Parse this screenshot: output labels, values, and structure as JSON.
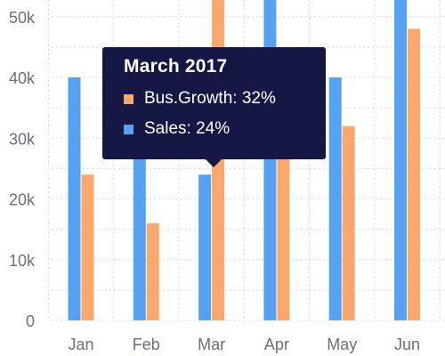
{
  "chart_data": {
    "type": "bar",
    "categories": [
      "Jan",
      "Feb",
      "Mar",
      "Apr",
      "May",
      "Jun"
    ],
    "series": [
      {
        "name": "Sales",
        "color": "#55a1f3",
        "values": [
          40000,
          30000,
          24000,
          58000,
          40000,
          58000
        ]
      },
      {
        "name": "Bus.Growth",
        "color": "#fba86c",
        "values": [
          24000,
          16000,
          58000,
          27000,
          32000,
          48000
        ]
      }
    ],
    "ylim": [
      0,
      55000
    ],
    "yticks": [
      0,
      10000,
      20000,
      30000,
      40000,
      50000
    ],
    "ytick_labels": [
      "0",
      "10k",
      "20k",
      "30k",
      "40k",
      "50k"
    ],
    "grid": true
  },
  "tooltip": {
    "title": "March 2017",
    "rows": [
      {
        "label": "Bus.Growth: 32%",
        "color": "#fba86c"
      },
      {
        "label": "Sales: 24%",
        "color": "#55a1f3"
      }
    ]
  }
}
